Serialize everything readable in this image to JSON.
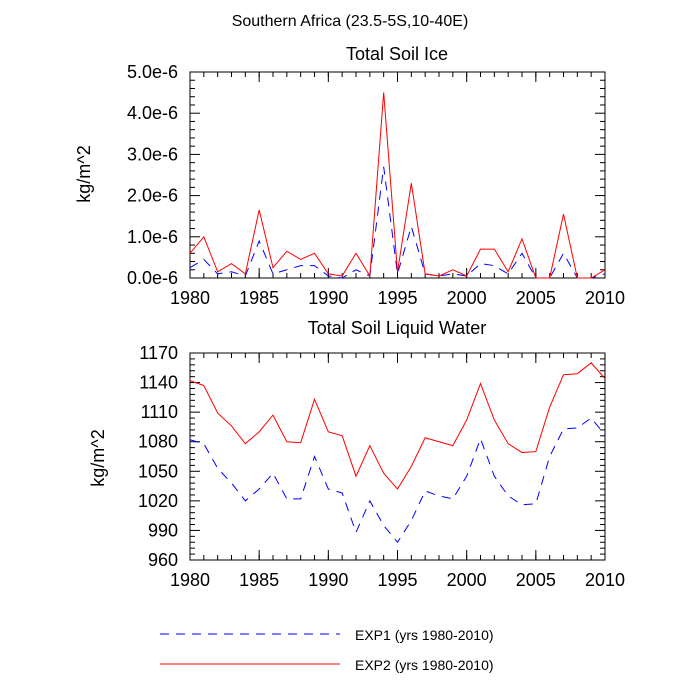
{
  "figure_title": "Southern Africa (23.5-5S,10-40E)",
  "chart_data": [
    {
      "type": "line",
      "title": "Total Soil Ice",
      "xlabel": "",
      "ylabel": "kg/m^2",
      "xlim": [
        1980,
        2010
      ],
      "ylim": [
        0,
        5e-06
      ],
      "x_ticks": [
        1980,
        1985,
        1990,
        1995,
        2000,
        2005,
        2010
      ],
      "x_tick_labels": [
        "1980",
        "1985",
        "1990",
        "1995",
        "2000",
        "2005",
        "2010"
      ],
      "y_ticks": [
        0,
        1e-06,
        2e-06,
        3e-06,
        4e-06,
        5e-06
      ],
      "y_tick_labels": [
        "0.0e-6",
        "1.0e-6",
        "2.0e-6",
        "3.0e-6",
        "4.0e-6",
        "5.0e-6"
      ],
      "x": [
        1980,
        1981,
        1982,
        1983,
        1984,
        1985,
        1986,
        1987,
        1988,
        1989,
        1990,
        1991,
        1992,
        1993,
        1994,
        1995,
        1996,
        1997,
        1998,
        1999,
        2000,
        2001,
        2002,
        2003,
        2004,
        2005,
        2006,
        2007,
        2008,
        2009,
        2010
      ],
      "series": [
        {
          "name": "EXP1 (yrs 1980-2010)",
          "color": "#0000ff",
          "dash": "dashed",
          "values": [
            2.5e-07,
            4.5e-07,
            1e-07,
            1.5e-07,
            5e-08,
            9e-07,
            1e-07,
            2e-07,
            3e-07,
            3e-07,
            5e-08,
            0.0,
            2e-07,
            5e-08,
            2.7e-06,
            1e-07,
            1.25e-06,
            1e-07,
            5e-08,
            1e-07,
            5e-08,
            3.5e-07,
            3e-07,
            1e-07,
            6e-07,
            0.0,
            0.0,
            6e-07,
            0.0,
            0.0,
            1e-07
          ]
        },
        {
          "name": "EXP2 (yrs 1980-2010)",
          "color": "#ff0000",
          "dash": "solid",
          "values": [
            6e-07,
            1e-06,
            1.5e-07,
            3.5e-07,
            1e-07,
            1.65e-06,
            2.5e-07,
            6.5e-07,
            4.5e-07,
            6e-07,
            1e-07,
            5e-08,
            6e-07,
            5e-08,
            4.5e-06,
            1.5e-07,
            2.3e-06,
            1e-07,
            5e-08,
            2e-07,
            5e-08,
            7e-07,
            7e-07,
            1.5e-07,
            9.5e-07,
            0.0,
            0.0,
            1.55e-06,
            0.0,
            0.0,
            2e-07
          ]
        }
      ]
    },
    {
      "type": "line",
      "title": "Total Soil Liquid Water",
      "xlabel": "",
      "ylabel": "kg/m^2",
      "xlim": [
        1980,
        2010
      ],
      "ylim": [
        960,
        1170
      ],
      "x_ticks": [
        1980,
        1985,
        1990,
        1995,
        2000,
        2005,
        2010
      ],
      "x_tick_labels": [
        "1980",
        "1985",
        "1990",
        "1995",
        "2000",
        "2005",
        "2010"
      ],
      "y_ticks": [
        960,
        990,
        1020,
        1050,
        1080,
        1110,
        1140,
        1170
      ],
      "y_tick_labels": [
        "960",
        "990",
        "1020",
        "1050",
        "1080",
        "1110",
        "1140",
        "1170"
      ],
      "x": [
        1980,
        1981,
        1982,
        1983,
        1984,
        1985,
        1986,
        1987,
        1988,
        1989,
        1990,
        1991,
        1992,
        1993,
        1994,
        1995,
        1996,
        1997,
        1998,
        1999,
        2000,
        2001,
        2002,
        2003,
        2004,
        2005,
        2006,
        2007,
        2008,
        2009,
        2010
      ],
      "series": [
        {
          "name": "EXP1 (yrs 1980-2010)",
          "color": "#0000ff",
          "dash": "dashed",
          "values": [
            1082,
            1078,
            1053,
            1038,
            1020,
            1032,
            1048,
            1022,
            1022,
            1065,
            1032,
            1028,
            988,
            1020,
            995,
            978,
            1000,
            1030,
            1025,
            1022,
            1045,
            1083,
            1045,
            1025,
            1016,
            1017,
            1065,
            1093,
            1094,
            1104,
            1087
          ]
        },
        {
          "name": "EXP2 (yrs 1980-2010)",
          "color": "#ff0000",
          "dash": "solid",
          "values": [
            1142,
            1137,
            1109,
            1096,
            1078,
            1090,
            1107,
            1080,
            1079,
            1123,
            1090,
            1086,
            1045,
            1076,
            1048,
            1032,
            1055,
            1084,
            1080,
            1076,
            1102,
            1139,
            1102,
            1078,
            1069,
            1070,
            1115,
            1148,
            1149,
            1160,
            1144
          ]
        }
      ]
    }
  ],
  "legend": {
    "items": [
      {
        "label": "EXP1 (yrs 1980-2010)",
        "color": "#0000ff",
        "dash": "dashed"
      },
      {
        "label": "EXP2 (yrs 1980-2010)",
        "color": "#ff0000",
        "dash": "solid"
      }
    ]
  }
}
